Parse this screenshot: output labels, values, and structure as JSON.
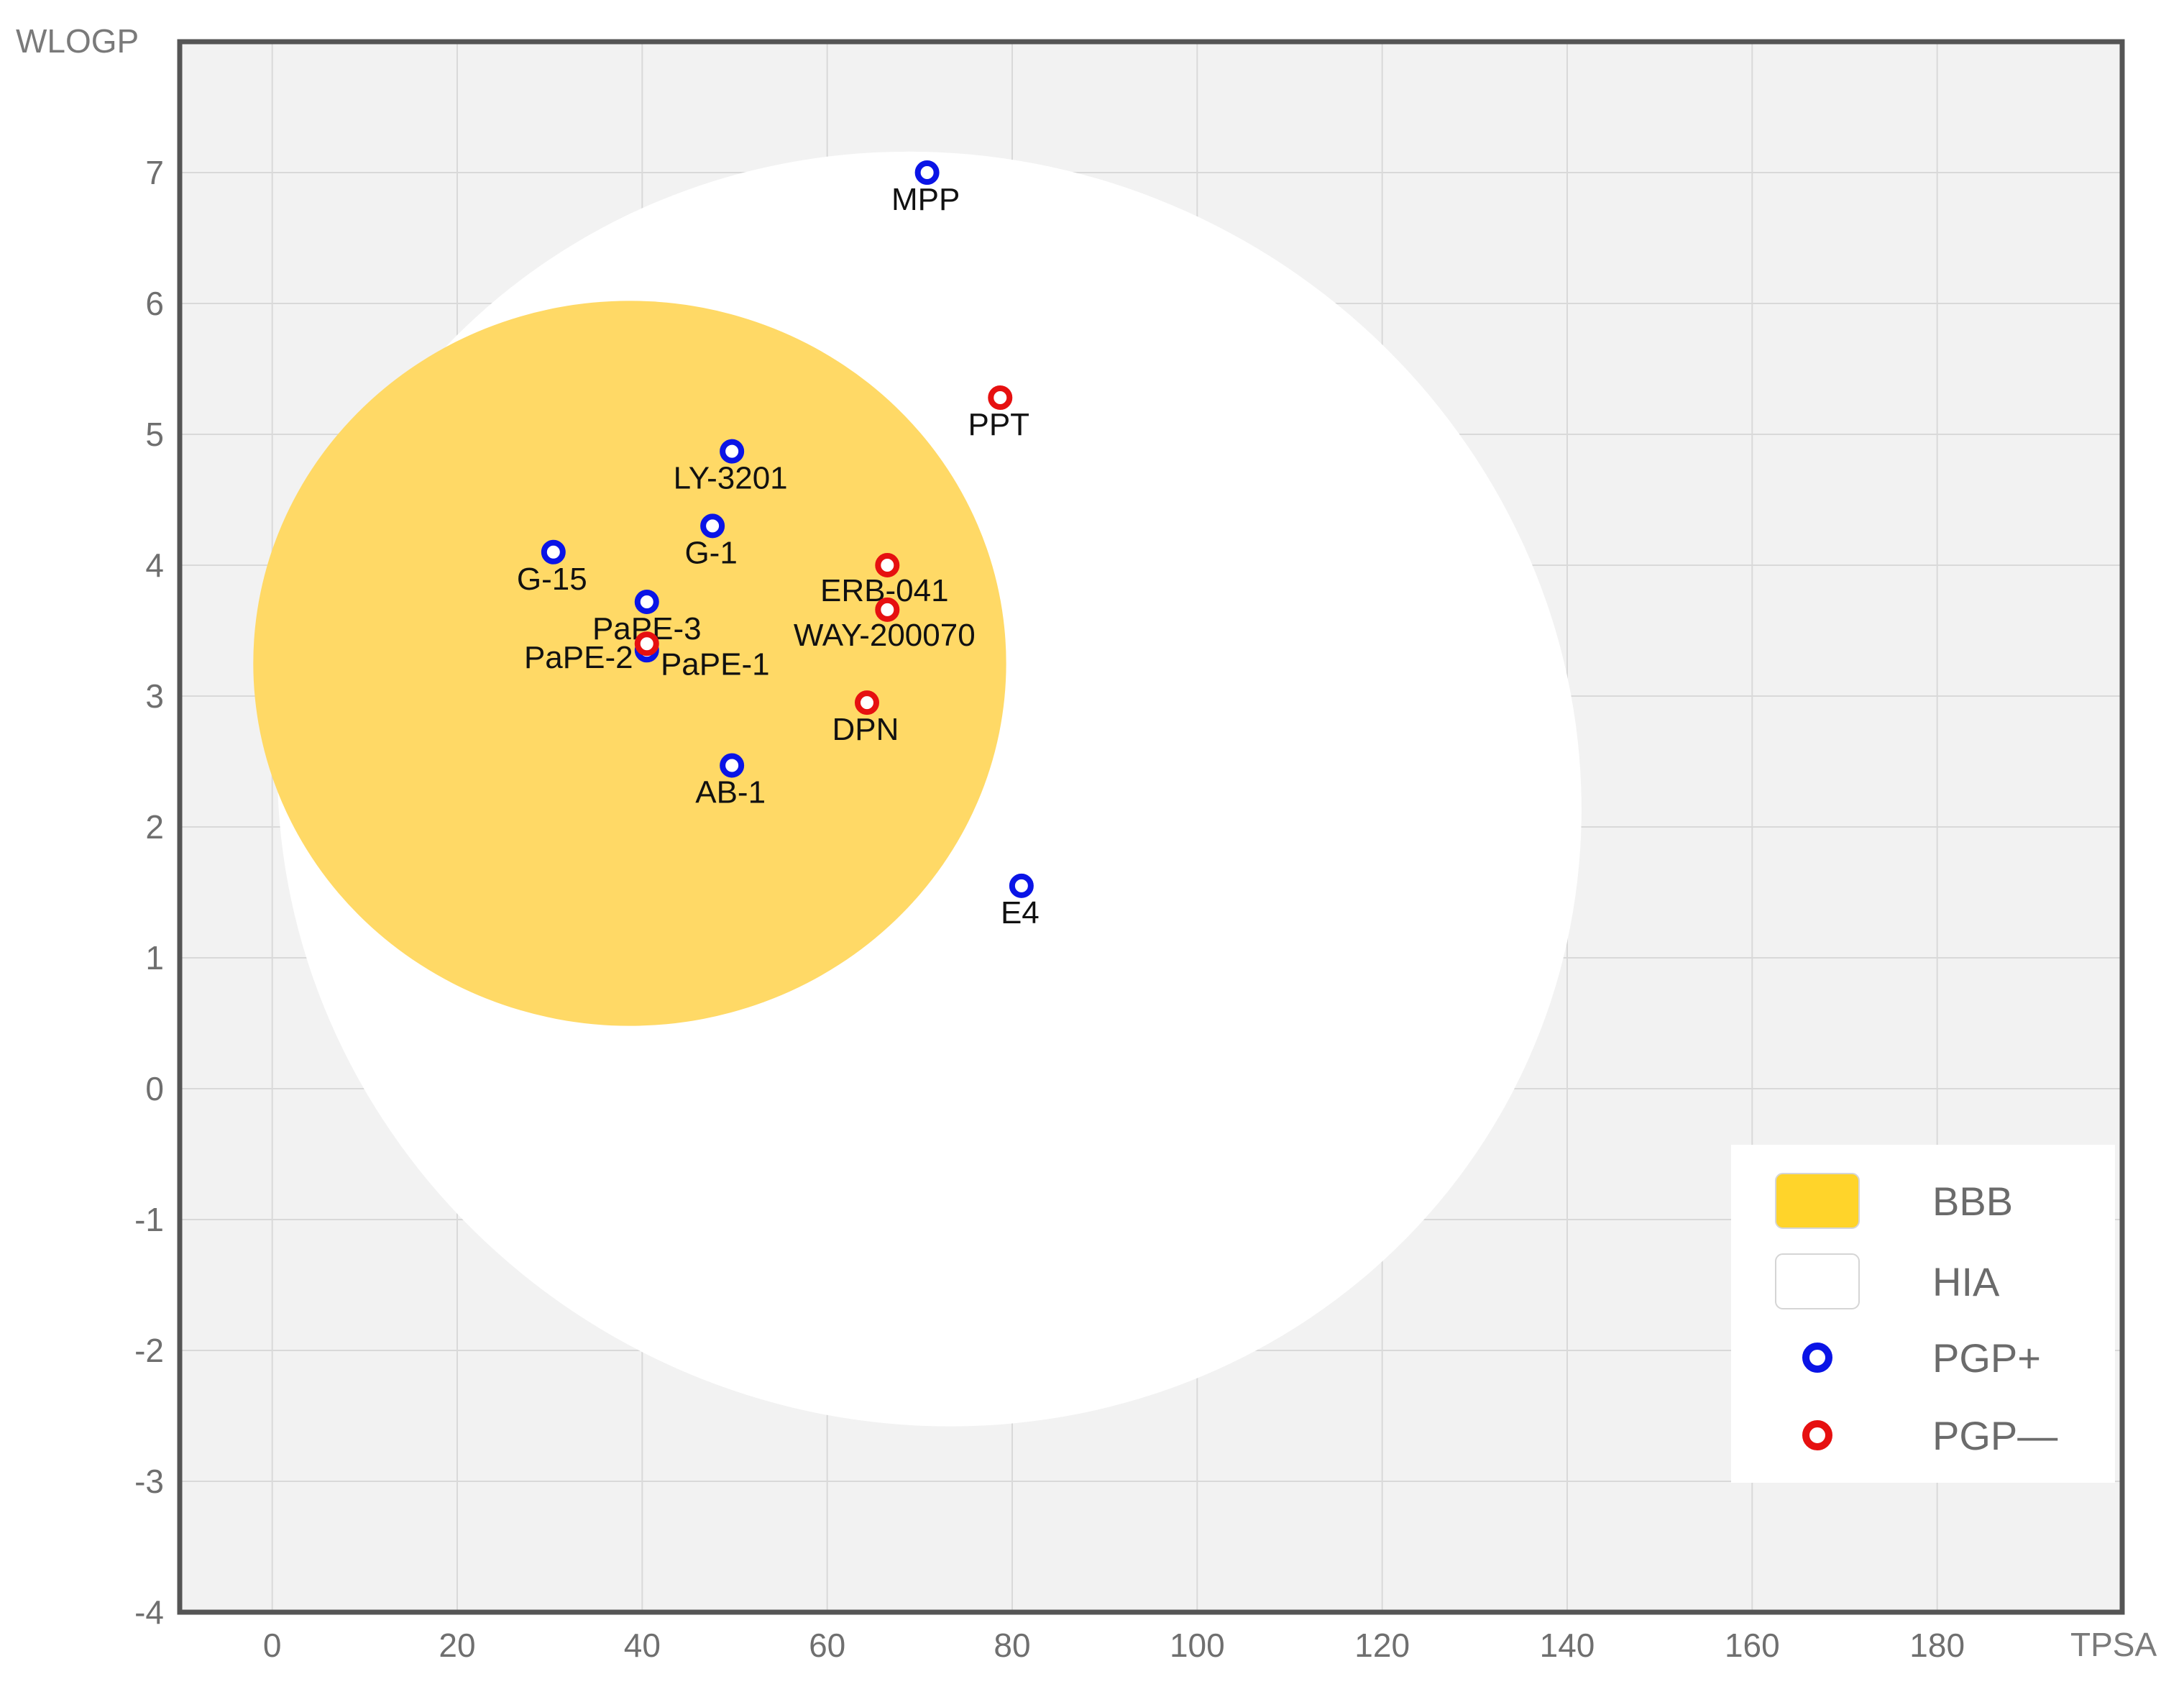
{
  "chart_data": {
    "type": "scatter",
    "title": "",
    "xlabel": "TPSA",
    "ylabel": "WLOGP",
    "xlim": [
      -10,
      200
    ],
    "ylim": [
      -4,
      8
    ],
    "grid": true,
    "xticks": [
      "0",
      "20",
      "40",
      "60",
      "80",
      "100",
      "120",
      "140",
      "160",
      "180"
    ],
    "yticks": [
      "-4",
      "-3",
      "-2",
      "-1",
      "0",
      "1",
      "2",
      "3",
      "4",
      "5",
      "6",
      "7"
    ],
    "regions": [
      {
        "name": "HIA",
        "shape": "ellipse",
        "center": [
          71.05,
          2.29
        ],
        "x_radius": 71.05,
        "y_radius": 4.83,
        "color": "#ffffff"
      },
      {
        "name": "BBB",
        "shape": "ellipse",
        "center": [
          38.65,
          3.25
        ],
        "x_radius": 40.7,
        "y_radius": 2.77,
        "color": "#ffd966"
      }
    ],
    "series": [
      {
        "name": "PGP+",
        "color": "#0a14e6",
        "points": [
          {
            "label": "MPP",
            "x": 70.8,
            "y": 7.0
          },
          {
            "label": "LY-3201",
            "x": 49.7,
            "y": 4.87
          },
          {
            "label": "G-1",
            "x": 47.6,
            "y": 4.3
          },
          {
            "label": "G-15",
            "x": 30.4,
            "y": 4.1
          },
          {
            "label": "PaPE-3",
            "x": 40.5,
            "y": 3.72
          },
          {
            "label": "PaPE-1",
            "x": 40.5,
            "y": 3.35
          },
          {
            "label": "AB-1",
            "x": 49.7,
            "y": 2.47
          },
          {
            "label": "E4",
            "x": 81.0,
            "y": 1.55
          }
        ]
      },
      {
        "name": "PGP—",
        "color": "#e61010",
        "points": [
          {
            "label": "PPT",
            "x": 78.7,
            "y": 5.28
          },
          {
            "label": "ERB-041",
            "x": 66.5,
            "y": 4.0
          },
          {
            "label": "WAY-200070",
            "x": 66.5,
            "y": 3.66
          },
          {
            "label": "PaPE-2",
            "x": 40.5,
            "y": 3.4
          },
          {
            "label": "DPN",
            "x": 64.3,
            "y": 2.95
          }
        ]
      }
    ],
    "legend": {
      "position": "bottom-right",
      "entries": [
        {
          "name": "BBB",
          "kind": "swatch",
          "color": "#ffd42a"
        },
        {
          "name": "HIA",
          "kind": "swatch",
          "color": "#ffffff"
        },
        {
          "name": "PGP+",
          "kind": "marker",
          "color": "#0a14e6"
        },
        {
          "name": "PGP—",
          "kind": "marker",
          "color": "#e61010"
        }
      ]
    },
    "colors": {
      "plot_background": "#f2f2f2",
      "grid": "#d9d9d9",
      "frame": "#555555"
    }
  }
}
